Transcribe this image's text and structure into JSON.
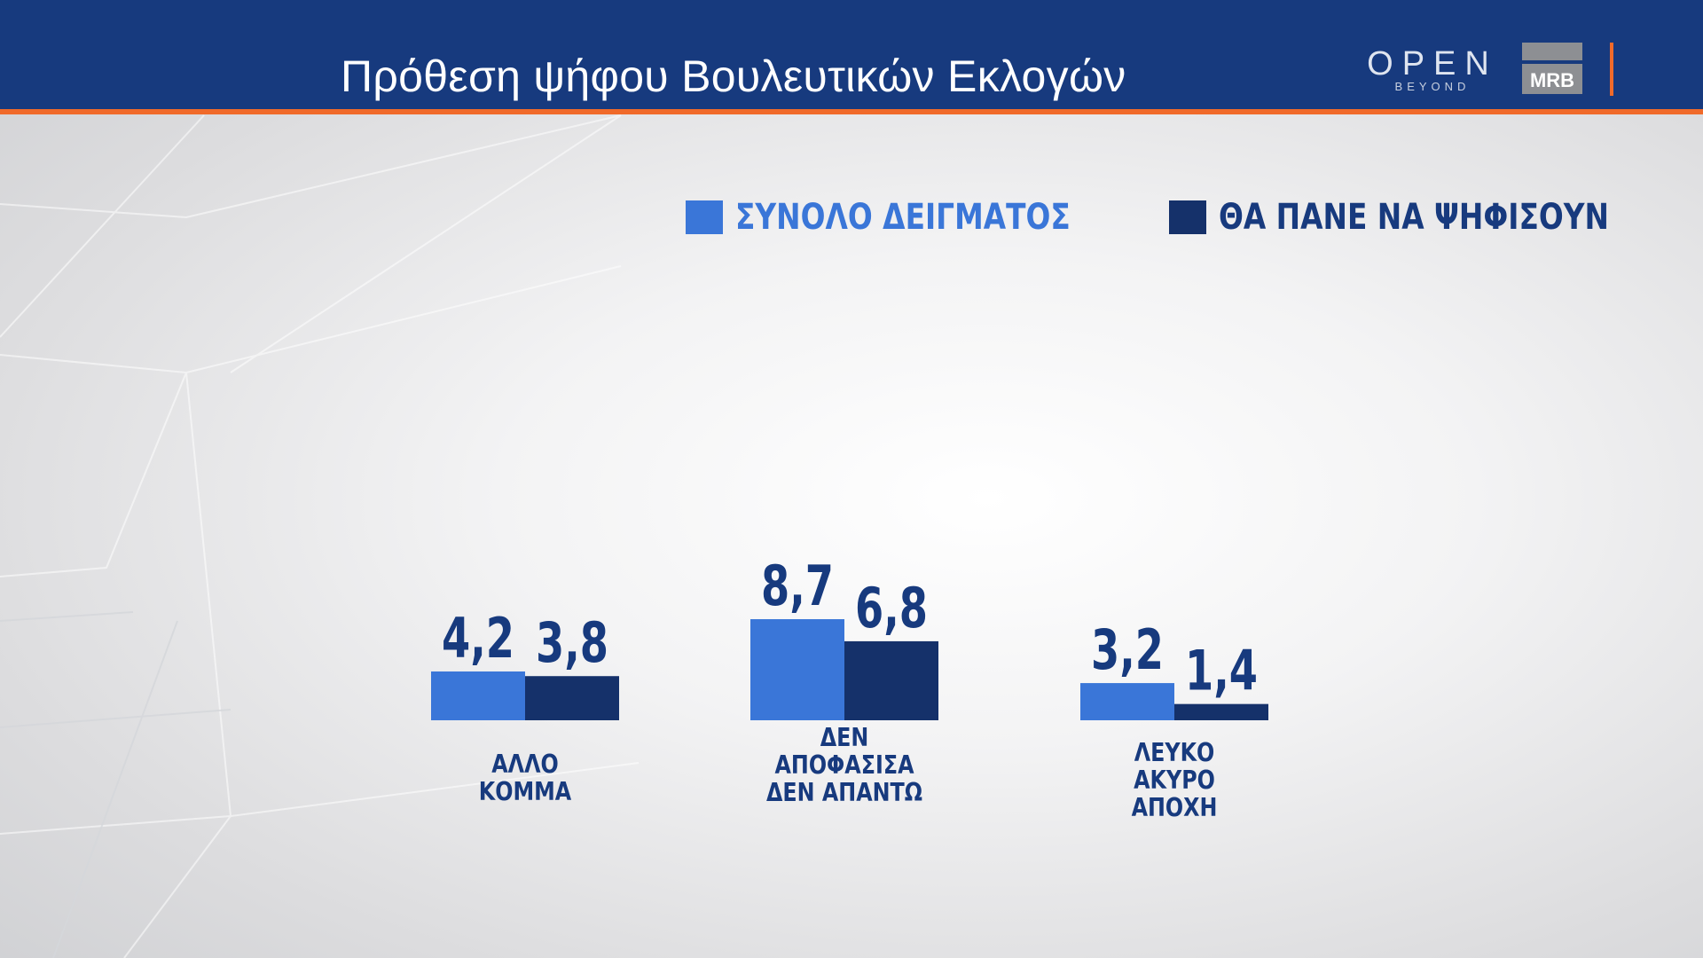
{
  "header": {
    "title": "Πρόθεση ψήφου Βουλευτικών Εκλογών",
    "logo_open": "OPEN",
    "logo_open_sub": "BEYOND",
    "logo_mrb": "MRB"
  },
  "colors": {
    "header_bg": "#173a7e",
    "accent": "#f06a2a",
    "series_total": "#3a76d8",
    "series_voters": "#15316a",
    "text_dark": "#173a7e"
  },
  "chart_data": {
    "type": "bar",
    "title": "",
    "xlabel": "",
    "ylabel": "",
    "categories": [
      [
        "ΑΛΛΟ",
        "ΚΟΜΜΑ"
      ],
      [
        "ΔΕΝ",
        "ΑΠΟΦΑΣΙΣΑ",
        "ΔΕΝ ΑΠΑΝΤΩ"
      ],
      [
        "ΛΕΥΚΟ",
        "ΑΚΥΡΟ",
        "ΑΠΟΧΗ"
      ]
    ],
    "series": [
      {
        "name": "ΣΥΝΟΛΟ ΔΕΙΓΜΑΤΟΣ",
        "values": [
          4.2,
          8.7,
          3.2
        ],
        "labels": [
          "4,2",
          "8,7",
          "3,2"
        ]
      },
      {
        "name": "ΘΑ ΠΑΝΕ ΝΑ ΨΗΦΙΣΟΥΝ",
        "values": [
          3.8,
          6.8,
          1.4
        ],
        "labels": [
          "3,8",
          "6,8",
          "1,4"
        ]
      }
    ],
    "ylim": [
      0,
      10
    ],
    "grid": false,
    "legend": "top-right"
  }
}
